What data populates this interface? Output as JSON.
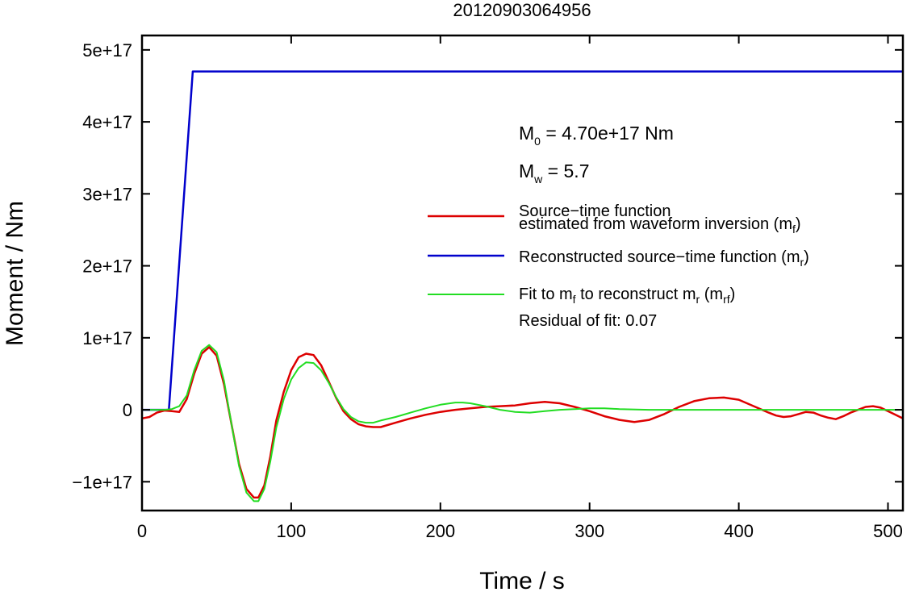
{
  "chart_data": {
    "type": "line",
    "title": "20120903064956",
    "xlabel": "Time / s",
    "ylabel": "Moment / Nm",
    "xlim": [
      0,
      510
    ],
    "ylim": [
      -1.4e+17,
      5.2e+17
    ],
    "x_ticks": [
      0,
      100,
      200,
      300,
      400,
      500
    ],
    "x_tick_labels": [
      "0",
      "100",
      "200",
      "300",
      "400",
      "500"
    ],
    "y_ticks": [
      -1e+17,
      0,
      1e+17,
      2e+17,
      3e+17,
      4e+17,
      5e+17
    ],
    "y_tick_labels": [
      "−1e+17",
      "0",
      "1e+17",
      "2e+17",
      "3e+17",
      "4e+17",
      "5e+17"
    ],
    "grid": false,
    "legend_position": "right",
    "annotations": {
      "m0_prefix": "M",
      "m0_sub": "0",
      "m0_value": " = 4.70e+17 Nm",
      "mw_prefix": "M",
      "mw_sub": "w",
      "mw_value": " = 5.7",
      "residual": "Residual of fit: 0.07"
    },
    "legend": [
      {
        "id": "red",
        "color": "#dd0000",
        "lines": [
          {
            "text": "Source−time function"
          },
          {
            "text": "estimated from waveform inversion (m",
            "sub": "f",
            "tail": ")"
          }
        ]
      },
      {
        "id": "blue",
        "color": "#0000cc",
        "lines": [
          {
            "text": "Reconstructed source−time function (m",
            "sub": "r",
            "tail": ")"
          }
        ]
      },
      {
        "id": "green",
        "color": "#22dd22",
        "lines": [
          {
            "text": "Fit to m",
            "sub": "f",
            "mid": " to reconstruct m",
            "sub2": "r",
            "mid2": " (m",
            "sub3": "rf",
            "tail": ")"
          }
        ]
      }
    ],
    "series": [
      {
        "color": "#0000cc",
        "x": [
          0,
          18,
          34,
          510
        ],
        "y": [
          0,
          0,
          4.7e+17,
          4.7e+17
        ]
      },
      {
        "color": "#dd0000",
        "x": [
          0,
          5,
          10,
          15,
          20,
          25,
          30,
          35,
          40,
          45,
          50,
          55,
          60,
          65,
          70,
          75,
          78,
          82,
          86,
          90,
          95,
          100,
          105,
          110,
          115,
          120,
          125,
          130,
          135,
          140,
          145,
          150,
          155,
          160,
          170,
          180,
          190,
          200,
          210,
          220,
          230,
          240,
          250,
          260,
          270,
          280,
          290,
          300,
          310,
          320,
          330,
          340,
          350,
          360,
          370,
          380,
          390,
          400,
          410,
          420,
          425,
          430,
          435,
          440,
          445,
          450,
          455,
          460,
          465,
          470,
          475,
          480,
          485,
          490,
          495,
          500,
          505,
          510
        ],
        "y": [
          -1.2e+16,
          -1e+16,
          -4000000000000000.0,
          -1000000000000000.0,
          -2000000000000000.0,
          -3000000000000000.0,
          1.5e+16,
          5e+16,
          7.8e+16,
          8.7e+16,
          7.5e+16,
          3.5e+16,
          -2e+16,
          -7.5e+16,
          -1.1e+17,
          -1.22e+17,
          -1.22e+17,
          -1.05e+17,
          -6.5e+16,
          -1.5e+16,
          2.5e+16,
          5.5e+16,
          7.3e+16,
          7.8e+16,
          7.6e+16,
          6.2e+16,
          4e+16,
          1.7e+16,
          -2000000000000000.0,
          -1.3e+16,
          -2e+16,
          -2.3e+16,
          -2.4e+16,
          -2.4e+16,
          -1.8e+16,
          -1.2e+16,
          -7000000000000000.0,
          -3000000000000000.0,
          0.0,
          2000000000000000.0,
          4000000000000000.0,
          5000000000000000.0,
          6000000000000000.0,
          9000000000000000.0,
          1.1e+16,
          9000000000000000.0,
          4000000000000000.0,
          -2000000000000000.0,
          -9000000000000000.0,
          -1.4e+16,
          -1.7e+16,
          -1.4e+16,
          -6000000000000000.0,
          4000000000000000.0,
          1.2e+16,
          1.6e+16,
          1.7e+16,
          1.4e+16,
          5000000000000000.0,
          -4000000000000000.0,
          -8000000000000000.0,
          -1e+16,
          -9000000000000000.0,
          -6000000000000000.0,
          -3000000000000000.0,
          -4000000000000000.0,
          -8000000000000000.0,
          -1.1e+16,
          -1.3e+16,
          -9000000000000000.0,
          -4000000000000000.0,
          0.0,
          4000000000000000.0,
          5000000000000000.0,
          3000000000000000.0,
          -2000000000000000.0,
          -7000000000000000.0,
          -1.2e+16
        ]
      },
      {
        "color": "#22dd22",
        "x": [
          0,
          5,
          10,
          15,
          20,
          25,
          30,
          35,
          40,
          45,
          50,
          55,
          60,
          65,
          70,
          75,
          78,
          82,
          86,
          90,
          95,
          100,
          105,
          110,
          115,
          120,
          125,
          130,
          135,
          140,
          145,
          150,
          155,
          160,
          170,
          180,
          190,
          200,
          210,
          215,
          220,
          230,
          240,
          250,
          260,
          270,
          280,
          290,
          300,
          310,
          320,
          340,
          360,
          380,
          400,
          420,
          440,
          460,
          480,
          500,
          510
        ],
        "y": [
          0,
          0,
          0,
          0,
          1000000000000000.0,
          5000000000000000.0,
          2e+16,
          5.5e+16,
          8.2e+16,
          9e+16,
          8e+16,
          4e+16,
          -2e+16,
          -7.8e+16,
          -1.15e+17,
          -1.27e+17,
          -1.27e+17,
          -1.1e+17,
          -7.2e+16,
          -2.5e+16,
          1.5e+16,
          4.2e+16,
          5.8e+16,
          6.6e+16,
          6.5e+16,
          5.5e+16,
          3.8e+16,
          1.8e+16,
          1000000000000000.0,
          -1e+16,
          -1.6e+16,
          -1.8e+16,
          -1.8e+16,
          -1.5e+16,
          -1e+16,
          -4000000000000000.0,
          2000000000000000.0,
          7000000000000000.0,
          1e+16,
          1e+16,
          9000000000000000.0,
          5000000000000000.0,
          0.0,
          -3000000000000000.0,
          -4000000000000000.0,
          -2000000000000000.0,
          0.0,
          1000000000000000.0,
          2000000000000000.0,
          2000000000000000.0,
          1000000000000000.0,
          0.0,
          0.0,
          0.0,
          0.0,
          0.0,
          0.0,
          0.0,
          0.0,
          0.0,
          0.0
        ]
      }
    ]
  }
}
